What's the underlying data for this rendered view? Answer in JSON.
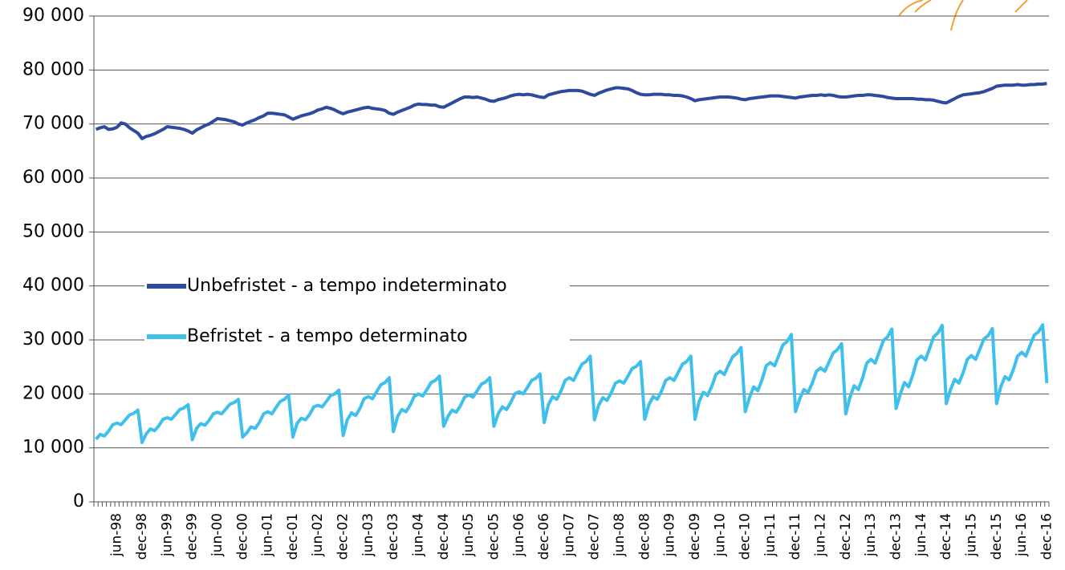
{
  "chart_data": {
    "type": "line",
    "categories": [
      null,
      null,
      null,
      null,
      null,
      "jun-98",
      null,
      null,
      null,
      null,
      null,
      "dec-98",
      null,
      null,
      null,
      null,
      null,
      "jun-99",
      null,
      null,
      null,
      null,
      null,
      "dec-99",
      null,
      null,
      null,
      null,
      null,
      "jun-00",
      null,
      null,
      null,
      null,
      null,
      "dec-00",
      null,
      null,
      null,
      null,
      null,
      "jun-01",
      null,
      null,
      null,
      null,
      null,
      "dec-01",
      null,
      null,
      null,
      null,
      null,
      "jun-02",
      null,
      null,
      null,
      null,
      null,
      "dec-02",
      null,
      null,
      null,
      null,
      null,
      "jun-03",
      null,
      null,
      null,
      null,
      null,
      "dec-03",
      null,
      null,
      null,
      null,
      null,
      "jun-04",
      null,
      null,
      null,
      null,
      null,
      "dec-04",
      null,
      null,
      null,
      null,
      null,
      "jun-05",
      null,
      null,
      null,
      null,
      null,
      "dec-05",
      null,
      null,
      null,
      null,
      null,
      "jun-06",
      null,
      null,
      null,
      null,
      null,
      "dec-06",
      null,
      null,
      null,
      null,
      null,
      "jun-07",
      null,
      null,
      null,
      null,
      null,
      "dec-07",
      null,
      null,
      null,
      null,
      null,
      "jun-08",
      null,
      null,
      null,
      null,
      null,
      "dec-08",
      null,
      null,
      null,
      null,
      null,
      "jun-09",
      null,
      null,
      null,
      null,
      null,
      "dec-09",
      null,
      null,
      null,
      null,
      null,
      "jun-10",
      null,
      null,
      null,
      null,
      null,
      "dec-10",
      null,
      null,
      null,
      null,
      null,
      "jun-11",
      null,
      null,
      null,
      null,
      null,
      "dec-11",
      null,
      null,
      null,
      null,
      null,
      "jun-12",
      null,
      null,
      null,
      null,
      null,
      "dec-12",
      null,
      null,
      null,
      null,
      null,
      "jun-13",
      null,
      null,
      null,
      null,
      null,
      "dec-13",
      null,
      null,
      null,
      null,
      null,
      "jun-14",
      null,
      null,
      null,
      null,
      null,
      "dec-14",
      null,
      null,
      null,
      null,
      null,
      "jun-15",
      null,
      null,
      null,
      null,
      null,
      "dec-15",
      null,
      null,
      null,
      null,
      null,
      "jun-16",
      null,
      null,
      null,
      null,
      null,
      "dec-16"
    ],
    "series": [
      {
        "name": "Unbefristet - a tempo indeterminato",
        "color": "#2e4a9e",
        "values": [
          69000,
          69300,
          69500,
          69000,
          69100,
          69400,
          70200,
          70000,
          69300,
          68800,
          68300,
          67300,
          67700,
          67900,
          68200,
          68600,
          69000,
          69500,
          69400,
          69300,
          69200,
          69000,
          68700,
          68300,
          68900,
          69300,
          69700,
          70000,
          70500,
          71000,
          70900,
          70800,
          70600,
          70400,
          70000,
          69800,
          70200,
          70500,
          70800,
          71200,
          71500,
          72000,
          72000,
          71900,
          71800,
          71700,
          71300,
          70900,
          71200,
          71500,
          71700,
          71900,
          72200,
          72600,
          72800,
          73100,
          72900,
          72600,
          72200,
          71900,
          72200,
          72400,
          72600,
          72800,
          73000,
          73100,
          72900,
          72800,
          72700,
          72500,
          72000,
          71800,
          72200,
          72500,
          72800,
          73100,
          73500,
          73700,
          73600,
          73600,
          73500,
          73500,
          73200,
          73100,
          73500,
          73900,
          74300,
          74700,
          75000,
          75000,
          74900,
          75000,
          74800,
          74600,
          74300,
          74200,
          74500,
          74700,
          74900,
          75200,
          75400,
          75500,
          75400,
          75500,
          75400,
          75200,
          75000,
          74900,
          75400,
          75600,
          75800,
          76000,
          76100,
          76200,
          76200,
          76200,
          76100,
          75800,
          75500,
          75300,
          75700,
          76000,
          76300,
          76500,
          76700,
          76700,
          76600,
          76500,
          76200,
          75800,
          75500,
          75400,
          75400,
          75500,
          75500,
          75500,
          75400,
          75400,
          75300,
          75300,
          75200,
          75000,
          74700,
          74300,
          74500,
          74600,
          74700,
          74800,
          74900,
          75000,
          75000,
          75000,
          74900,
          74800,
          74600,
          74500,
          74700,
          74800,
          74900,
          75000,
          75100,
          75200,
          75200,
          75200,
          75100,
          75000,
          74900,
          74800,
          75000,
          75100,
          75200,
          75300,
          75300,
          75400,
          75300,
          75400,
          75300,
          75100,
          75000,
          75000,
          75100,
          75200,
          75300,
          75300,
          75400,
          75400,
          75300,
          75200,
          75100,
          74900,
          74800,
          74700,
          74700,
          74700,
          74700,
          74700,
          74600,
          74600,
          74500,
          74500,
          74400,
          74200,
          74000,
          73900,
          74300,
          74700,
          75100,
          75400,
          75500,
          75600,
          75700,
          75800,
          76000,
          76300,
          76600,
          77000,
          77100,
          77200,
          77200,
          77200,
          77300,
          77200,
          77200,
          77300,
          77300,
          77400,
          77400,
          77500
        ]
      },
      {
        "name": "Befristet - a tempo determinato",
        "color": "#3fc0ec",
        "values": [
          11600,
          12500,
          12200,
          13100,
          14300,
          14600,
          14300,
          15200,
          16100,
          16400,
          17000,
          11000,
          12600,
          13500,
          13200,
          14100,
          15300,
          15600,
          15300,
          16200,
          17100,
          17400,
          18000,
          11500,
          13600,
          14500,
          14200,
          15100,
          16300,
          16600,
          16300,
          17200,
          18100,
          18400,
          19000,
          12000,
          12800,
          13900,
          13600,
          14700,
          16300,
          16700,
          16300,
          17500,
          18600,
          19000,
          19800,
          12000,
          14500,
          15500,
          15200,
          16200,
          17600,
          17900,
          17600,
          18600,
          19700,
          20000,
          20700,
          12300,
          15200,
          16500,
          16000,
          17300,
          19100,
          19500,
          19100,
          20400,
          21700,
          22100,
          23000,
          13000,
          15800,
          17100,
          16700,
          17900,
          19600,
          20000,
          19600,
          20800,
          22100,
          22500,
          23300,
          14000,
          15800,
          17000,
          16600,
          17800,
          19400,
          19800,
          19400,
          20600,
          21800,
          22200,
          23000,
          14000,
          16300,
          17600,
          17100,
          18400,
          20000,
          20400,
          20000,
          21200,
          22500,
          22900,
          23700,
          14700,
          18000,
          19500,
          19000,
          20500,
          22500,
          23000,
          22500,
          24000,
          25500,
          26000,
          27000,
          15200,
          17900,
          19300,
          18800,
          20200,
          22000,
          22400,
          22000,
          23300,
          24700,
          25100,
          26000,
          15300,
          18000,
          19500,
          19000,
          20500,
          22500,
          23000,
          22500,
          24000,
          25500,
          26000,
          27000,
          15300,
          18600,
          20300,
          19700,
          21400,
          23600,
          24200,
          23600,
          25300,
          26900,
          27500,
          28600,
          16700,
          19300,
          21300,
          20600,
          22600,
          25200,
          25800,
          25200,
          27100,
          29100,
          29700,
          31000,
          16700,
          19100,
          20800,
          20300,
          22000,
          24200,
          24800,
          24200,
          25900,
          27600,
          28200,
          29300,
          16300,
          19400,
          21500,
          20800,
          22900,
          25700,
          26400,
          25700,
          27800,
          29900,
          30600,
          32000,
          17300,
          19900,
          22100,
          21300,
          23500,
          26300,
          27000,
          26300,
          28400,
          30600,
          31300,
          32700,
          18200,
          20800,
          22700,
          22000,
          23900,
          26400,
          27100,
          26400,
          28300,
          30200,
          30800,
          32100,
          18200,
          21300,
          23200,
          22600,
          24500,
          27000,
          27700,
          27000,
          29000,
          30900,
          31500,
          32800,
          22000
        ]
      }
    ],
    "ylim": [
      0,
      90000
    ],
    "yticks": [
      0,
      {
        "value": 10000,
        "label": "10 000"
      },
      {
        "value": 20000,
        "label": "20 000"
      },
      {
        "value": 30000,
        "label": "30 000"
      },
      {
        "value": 40000,
        "label": "40 000"
      },
      {
        "value": 50000,
        "label": "50 000"
      },
      {
        "value": 60000,
        "label": "60 000"
      },
      {
        "value": 70000,
        "label": "70 000"
      },
      {
        "value": 80000,
        "label": "80 000"
      },
      {
        "value": 90000,
        "label": "90 000"
      }
    ],
    "grid": true
  }
}
